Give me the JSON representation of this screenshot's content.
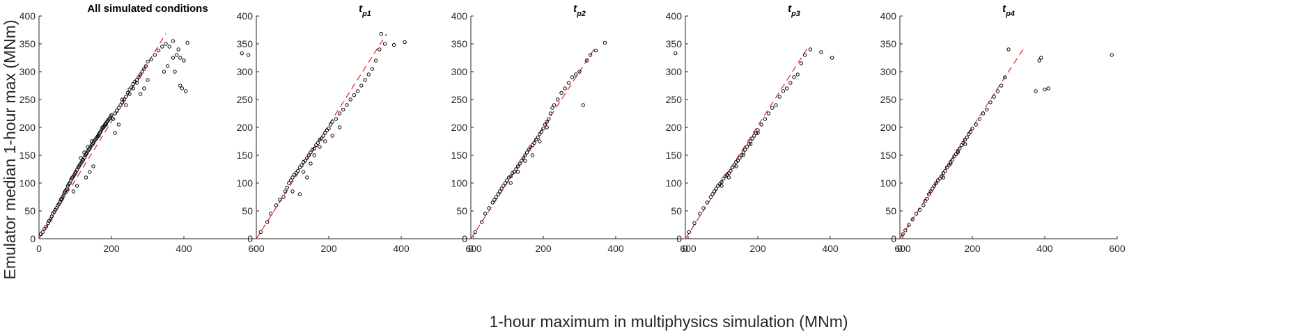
{
  "figure": {
    "xlabel": "1-hour maximum in multiphysics simulation (MNm)",
    "ylabel": "Emulator median 1-hour max (MNm)",
    "colors": {
      "points": "#000000",
      "reference_line": "#e02020",
      "axes": "#262626"
    }
  },
  "chart_data": [
    {
      "type": "scatter",
      "title": "All simulated conditions",
      "xlim": [
        0,
        600
      ],
      "ylim": [
        0,
        400
      ],
      "xticks": [
        0,
        200,
        400,
        600
      ],
      "yticks": [
        0,
        50,
        100,
        150,
        200,
        250,
        300,
        350,
        400
      ],
      "grid": false,
      "reference_line": {
        "from": [
          0,
          0
        ],
        "to": [
          350,
          368
        ]
      },
      "x": [
        5,
        10,
        15,
        20,
        25,
        28,
        32,
        35,
        38,
        42,
        45,
        48,
        52,
        55,
        58,
        60,
        62,
        65,
        68,
        70,
        72,
        75,
        78,
        80,
        82,
        85,
        88,
        90,
        92,
        95,
        98,
        100,
        102,
        105,
        108,
        110,
        112,
        115,
        118,
        120,
        122,
        125,
        128,
        130,
        132,
        135,
        138,
        140,
        142,
        145,
        148,
        150,
        152,
        155,
        158,
        160,
        162,
        165,
        168,
        170,
        172,
        175,
        178,
        180,
        182,
        185,
        188,
        190,
        192,
        195,
        198,
        200,
        205,
        210,
        215,
        220,
        225,
        230,
        235,
        240,
        245,
        250,
        255,
        260,
        265,
        270,
        275,
        280,
        285,
        290,
        295,
        300,
        310,
        320,
        330,
        340,
        350,
        360,
        370,
        380,
        390,
        400,
        410,
        560,
        578,
        130,
        140,
        150,
        115,
        125,
        135,
        145,
        165,
        175,
        185,
        95,
        105,
        210,
        220,
        230,
        240,
        250,
        260,
        270,
        280,
        290,
        300,
        345,
        355,
        370,
        385,
        395,
        405,
        375,
        390
      ],
      "y": [
        8,
        12,
        18,
        22,
        28,
        32,
        35,
        40,
        45,
        48,
        52,
        55,
        60,
        62,
        66,
        70,
        72,
        75,
        78,
        82,
        85,
        88,
        90,
        95,
        98,
        100,
        105,
        108,
        110,
        112,
        115,
        118,
        120,
        124,
        128,
        130,
        132,
        135,
        138,
        140,
        142,
        146,
        150,
        152,
        154,
        158,
        160,
        162,
        165,
        168,
        170,
        172,
        175,
        178,
        180,
        182,
        184,
        188,
        190,
        192,
        195,
        198,
        200,
        202,
        205,
        208,
        210,
        212,
        214,
        216,
        220,
        222,
        215,
        225,
        230,
        235,
        240,
        245,
        250,
        255,
        262,
        268,
        272,
        278,
        282,
        285,
        290,
        295,
        300,
        305,
        310,
        318,
        322,
        330,
        338,
        345,
        350,
        345,
        355,
        330,
        325,
        320,
        352,
        333,
        330,
        110,
        120,
        130,
        145,
        155,
        165,
        175,
        185,
        200,
        205,
        85,
        95,
        190,
        205,
        250,
        240,
        260,
        270,
        280,
        260,
        270,
        285,
        300,
        310,
        325,
        340,
        270,
        265,
        300,
        275
      ]
    },
    {
      "type": "scatter",
      "title": "tp1",
      "xlim": [
        0,
        600
      ],
      "ylim": [
        0,
        400
      ],
      "xticks": [
        0,
        200,
        400,
        600
      ],
      "yticks": [
        0,
        50,
        100,
        150,
        200,
        250,
        300,
        350,
        400
      ],
      "grid": false,
      "reference_line": {
        "from": [
          0,
          0
        ],
        "to": [
          360,
          368
        ]
      },
      "x": [
        12,
        30,
        40,
        55,
        65,
        75,
        80,
        85,
        90,
        95,
        100,
        105,
        110,
        115,
        120,
        125,
        130,
        135,
        140,
        145,
        150,
        155,
        160,
        165,
        170,
        175,
        180,
        185,
        190,
        195,
        200,
        205,
        210,
        220,
        230,
        240,
        250,
        260,
        270,
        280,
        290,
        300,
        310,
        320,
        330,
        340,
        345,
        355,
        380,
        410,
        100,
        120,
        130,
        140,
        150,
        160,
        175,
        190,
        210,
        230
      ],
      "y": [
        12,
        30,
        45,
        60,
        70,
        75,
        85,
        92,
        100,
        105,
        110,
        115,
        118,
        122,
        128,
        132,
        138,
        140,
        145,
        150,
        155,
        160,
        162,
        168,
        172,
        178,
        180,
        185,
        190,
        195,
        198,
        205,
        210,
        215,
        225,
        232,
        240,
        250,
        258,
        265,
        275,
        285,
        295,
        305,
        320,
        340,
        368,
        350,
        348,
        353,
        85,
        80,
        120,
        110,
        135,
        150,
        165,
        175,
        185,
        200
      ]
    },
    {
      "type": "scatter",
      "title": "tp2",
      "xlim": [
        0,
        600
      ],
      "ylim": [
        0,
        400
      ],
      "xticks": [
        0,
        200,
        400,
        600
      ],
      "yticks": [
        0,
        50,
        100,
        150,
        200,
        250,
        300,
        350,
        400
      ],
      "grid": false,
      "reference_line": {
        "from": [
          0,
          0
        ],
        "to": [
          345,
          345
        ]
      },
      "x": [
        12,
        30,
        40,
        50,
        60,
        65,
        70,
        75,
        80,
        85,
        90,
        95,
        100,
        105,
        110,
        115,
        120,
        125,
        130,
        135,
        140,
        145,
        150,
        155,
        160,
        165,
        170,
        175,
        180,
        185,
        190,
        195,
        200,
        205,
        210,
        215,
        220,
        225,
        230,
        240,
        250,
        260,
        270,
        280,
        290,
        300,
        310,
        320,
        330,
        345,
        370,
        565,
        110,
        130,
        150,
        170,
        190,
        210
      ],
      "y": [
        12,
        30,
        45,
        55,
        65,
        70,
        75,
        80,
        85,
        90,
        95,
        100,
        105,
        110,
        112,
        118,
        120,
        125,
        130,
        135,
        140,
        145,
        150,
        155,
        160,
        165,
        168,
        172,
        178,
        182,
        188,
        192,
        198,
        205,
        210,
        215,
        225,
        235,
        240,
        250,
        262,
        270,
        280,
        290,
        295,
        300,
        240,
        320,
        330,
        338,
        352,
        333,
        100,
        120,
        140,
        150,
        175,
        200
      ]
    },
    {
      "type": "scatter",
      "title": "tp3",
      "xlim": [
        0,
        600
      ],
      "ylim": [
        0,
        400
      ],
      "xticks": [
        0,
        200,
        400,
        600
      ],
      "yticks": [
        0,
        50,
        100,
        150,
        200,
        250,
        300,
        350,
        400
      ],
      "grid": false,
      "reference_line": {
        "from": [
          0,
          0
        ],
        "to": [
          340,
          345
        ]
      },
      "x": [
        10,
        25,
        40,
        50,
        60,
        70,
        75,
        80,
        85,
        90,
        95,
        100,
        105,
        110,
        115,
        120,
        125,
        130,
        135,
        140,
        145,
        150,
        155,
        160,
        165,
        170,
        175,
        180,
        185,
        190,
        195,
        200,
        210,
        220,
        230,
        240,
        250,
        260,
        270,
        280,
        290,
        300,
        310,
        320,
        330,
        345,
        375,
        405,
        100,
        120,
        140,
        160,
        180,
        200
      ],
      "y": [
        12,
        28,
        45,
        55,
        65,
        75,
        80,
        85,
        90,
        95,
        98,
        102,
        108,
        112,
        115,
        118,
        122,
        128,
        132,
        138,
        140,
        145,
        150,
        155,
        160,
        165,
        170,
        175,
        180,
        185,
        190,
        195,
        205,
        215,
        225,
        235,
        240,
        255,
        265,
        270,
        280,
        290,
        295,
        315,
        330,
        340,
        335,
        325,
        95,
        110,
        130,
        150,
        170,
        190
      ]
    },
    {
      "type": "scatter",
      "title": "tp4",
      "xlim": [
        0,
        600
      ],
      "ylim": [
        0,
        400
      ],
      "xticks": [
        0,
        200,
        400,
        600
      ],
      "yticks": [
        0,
        50,
        100,
        150,
        200,
        250,
        300,
        350,
        400
      ],
      "grid": false,
      "reference_line": {
        "from": [
          0,
          0
        ],
        "to": [
          340,
          340
        ]
      },
      "x": [
        8,
        15,
        25,
        35,
        45,
        55,
        65,
        70,
        75,
        80,
        85,
        90,
        95,
        100,
        105,
        110,
        115,
        120,
        125,
        130,
        135,
        140,
        145,
        150,
        155,
        160,
        165,
        170,
        175,
        180,
        185,
        190,
        195,
        200,
        210,
        220,
        230,
        240,
        250,
        260,
        270,
        280,
        290,
        300,
        375,
        390,
        400,
        410,
        385,
        585,
        100,
        120,
        140,
        160,
        180
      ],
      "y": [
        8,
        15,
        25,
        35,
        45,
        52,
        60,
        68,
        72,
        80,
        85,
        90,
        95,
        100,
        105,
        108,
        112,
        118,
        122,
        128,
        132,
        138,
        142,
        148,
        152,
        158,
        162,
        168,
        172,
        178,
        182,
        188,
        192,
        198,
        205,
        215,
        225,
        232,
        245,
        255,
        265,
        275,
        290,
        340,
        265,
        325,
        268,
        270,
        320,
        330,
        100,
        110,
        135,
        155,
        170
      ]
    }
  ]
}
